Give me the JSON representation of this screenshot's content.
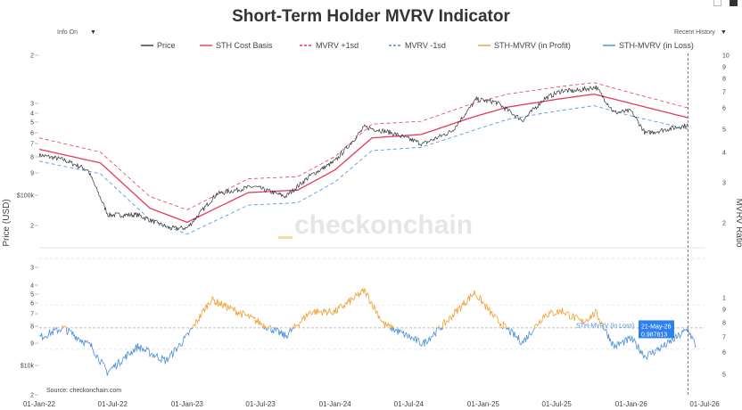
{
  "header": {
    "title": "Short-Term Holder MVRV Indicator",
    "info_toggle": "Info On",
    "range_select": "Recent History",
    "source": "Source: checkonchain.com",
    "watermark": "checkonchain"
  },
  "chart_data": [
    {
      "type": "line",
      "title": "Short-Term Holder MVRV Indicator",
      "ylabel": "Price (USD)",
      "yscale": "log",
      "ylim": [
        13000,
        200000
      ],
      "y2label": "MVRV Ratio",
      "y2scale": "log",
      "y2lim": [
        0.55,
        1.8
      ],
      "grid": false,
      "legend_position": "top",
      "x_ticks": [
        "01-Jan-22",
        "01-Jul-22",
        "01-Jan-23",
        "01-Jul-23",
        "01-Jan-24",
        "01-Jul-24",
        "01-Jan-25",
        "01-Jul-25",
        "01-Jan-26",
        "01-Jul-26"
      ],
      "y_ticks": [
        "2",
        "3",
        "4",
        "5",
        "6",
        "7",
        "8",
        "9",
        "$100k",
        "2",
        "3",
        "4",
        "5",
        "6",
        "7",
        "8",
        "9",
        "$10k",
        "2"
      ],
      "y2_ticks": [
        "10",
        "9",
        "8",
        "7",
        "6",
        "5",
        "4",
        "3",
        "2"
      ],
      "series": [
        {
          "name": "Price",
          "color": "#333333",
          "style": "solid",
          "dates": [
            "2022-01-01",
            "2022-03-01",
            "2022-05-01",
            "2022-06-20",
            "2022-09-01",
            "2022-11-20",
            "2023-01-01",
            "2023-03-15",
            "2023-06-15",
            "2023-09-01",
            "2023-11-01",
            "2024-01-01",
            "2024-03-14",
            "2024-05-15",
            "2024-08-05",
            "2024-10-15",
            "2024-12-15",
            "2025-02-01",
            "2025-04-08",
            "2025-06-01",
            "2025-07-15",
            "2025-08-15",
            "2025-10-06",
            "2025-11-20",
            "2026-01-01",
            "2026-02-05",
            "2026-04-01",
            "2026-05-21"
          ],
          "values": [
            47000,
            44000,
            38000,
            20000,
            20000,
            16500,
            16600,
            27000,
            30000,
            26000,
            35000,
            43000,
            70000,
            65000,
            55000,
            66000,
            104000,
            100000,
            77000,
            105000,
            118000,
            117000,
            124000,
            86000,
            88000,
            64000,
            68000,
            72000
          ]
        },
        {
          "name": "STH Cost Basis",
          "color": "#e8375c",
          "style": "solid",
          "dates": [
            "2022-01-01",
            "2022-06-01",
            "2022-10-01",
            "2023-01-01",
            "2023-06-01",
            "2023-10-01",
            "2024-01-01",
            "2024-04-01",
            "2024-08-01",
            "2024-12-01",
            "2025-03-01",
            "2025-07-01",
            "2025-10-01",
            "2026-01-01",
            "2026-05-21"
          ],
          "values": [
            51000,
            42000,
            22000,
            18000,
            27500,
            28500,
            38000,
            60000,
            63000,
            80000,
            93000,
            104000,
            112000,
            98000,
            80000
          ]
        },
        {
          "name": "MVRV +1sd",
          "color": "#e8375c",
          "style": "dashed",
          "dates": [
            "2022-01-01",
            "2022-06-01",
            "2022-10-01",
            "2023-01-01",
            "2023-06-01",
            "2023-10-01",
            "2024-01-01",
            "2024-04-01",
            "2024-08-01",
            "2024-12-01",
            "2025-03-01",
            "2025-07-01",
            "2025-10-01",
            "2026-01-01",
            "2026-05-21"
          ],
          "values": [
            60000,
            49000,
            26000,
            21500,
            33500,
            34500,
            46000,
            73000,
            76000,
            97000,
            112000,
            124000,
            132000,
            114000,
            92000
          ]
        },
        {
          "name": "MVRV -1sd",
          "color": "#4a8ddc",
          "style": "dashed",
          "dates": [
            "2022-01-01",
            "2022-06-01",
            "2022-10-01",
            "2023-01-01",
            "2023-06-01",
            "2023-10-01",
            "2024-01-01",
            "2024-04-01",
            "2024-08-01",
            "2024-12-01",
            "2025-03-01",
            "2025-07-01",
            "2025-10-01",
            "2026-01-01",
            "2026-05-21"
          ],
          "values": [
            43000,
            36000,
            18700,
            15200,
            23000,
            23800,
            32000,
            50000,
            52500,
            66000,
            78000,
            88000,
            95000,
            82000,
            68000
          ]
        },
        {
          "name": "STH-MVRV (in Profit)",
          "color": "#f0a030",
          "style": "solid",
          "axis": "y2"
        },
        {
          "name": "STH-MVRV (in Loss)",
          "color": "#4a8ddc",
          "style": "solid",
          "axis": "y2",
          "dates": [
            "2022-01-01",
            "2022-03-01",
            "2022-05-10",
            "2022-06-18",
            "2022-09-01",
            "2022-11-10",
            "2023-01-01",
            "2023-03-01",
            "2023-06-01",
            "2023-09-01",
            "2023-11-01",
            "2024-01-01",
            "2024-03-14",
            "2024-05-01",
            "2024-08-05",
            "2024-10-01",
            "2024-12-10",
            "2025-02-01",
            "2025-04-08",
            "2025-06-01",
            "2025-07-15",
            "2025-09-01",
            "2025-10-06",
            "2025-11-20",
            "2026-01-01",
            "2026-02-05",
            "2026-04-01",
            "2026-05-21",
            "2026-06-10"
          ],
          "values": [
            0.92,
            1.0,
            0.85,
            0.68,
            0.85,
            0.75,
            0.93,
            1.28,
            1.1,
            0.93,
            1.15,
            1.15,
            1.38,
            1.03,
            0.87,
            1.05,
            1.36,
            1.08,
            0.88,
            1.12,
            1.16,
            1.05,
            1.14,
            0.85,
            0.91,
            0.78,
            0.87,
            0.988,
            0.85
          ]
        }
      ],
      "reference_lines": [
        {
          "value": 1.0,
          "axis": "y2",
          "style": "dashed"
        }
      ],
      "annotations": [
        {
          "series": "STH-MVRV (in Loss)",
          "date": "21-May-26",
          "value": "0.987813"
        }
      ]
    }
  ]
}
